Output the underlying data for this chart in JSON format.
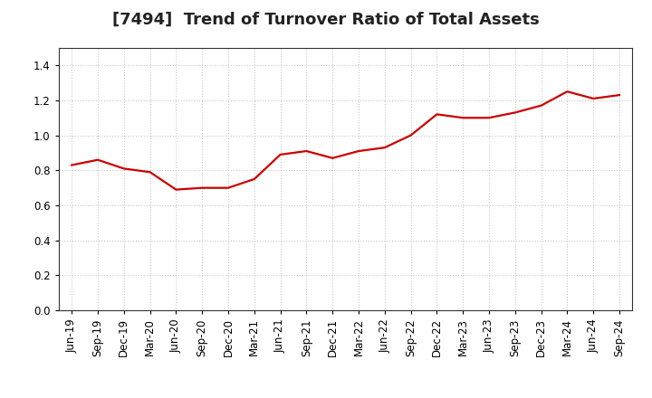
{
  "title": "[7494]  Trend of Turnover Ratio of Total Assets",
  "x_labels": [
    "Jun-19",
    "Sep-19",
    "Dec-19",
    "Mar-20",
    "Jun-20",
    "Sep-20",
    "Dec-20",
    "Mar-21",
    "Jun-21",
    "Sep-21",
    "Dec-21",
    "Mar-22",
    "Jun-22",
    "Sep-22",
    "Dec-22",
    "Mar-23",
    "Jun-23",
    "Sep-23",
    "Dec-23",
    "Mar-24",
    "Jun-24",
    "Sep-24"
  ],
  "y_values": [
    0.83,
    0.86,
    0.81,
    0.79,
    0.69,
    0.7,
    0.7,
    0.75,
    0.89,
    0.91,
    0.87,
    0.91,
    0.93,
    1.0,
    1.12,
    1.1,
    1.1,
    1.13,
    1.17,
    1.25,
    1.21,
    1.23
  ],
  "line_color": "#cc0000",
  "line_width": 1.6,
  "ylim": [
    0.0,
    1.5
  ],
  "yticks": [
    0.0,
    0.2,
    0.4,
    0.6,
    0.8,
    1.0,
    1.2,
    1.4
  ],
  "grid_color": "#bbbbbb",
  "bg_color": "#ffffff",
  "title_fontsize": 13,
  "tick_fontsize": 8.5
}
